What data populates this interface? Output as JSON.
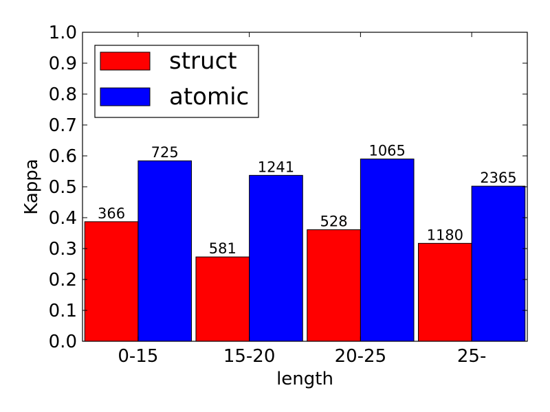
{
  "chart_data": {
    "type": "bar",
    "title": "",
    "xlabel": "length",
    "ylabel": "Kappa",
    "ylim": [
      0.0,
      1.0
    ],
    "yticks": [
      "0.0",
      "0.1",
      "0.2",
      "0.3",
      "0.4",
      "0.5",
      "0.6",
      "0.7",
      "0.8",
      "0.9",
      "1.0"
    ],
    "categories": [
      "0-15",
      "15-20",
      "20-25",
      "25-"
    ],
    "grid": false,
    "legend_position": "top-left",
    "series": [
      {
        "name": "struct",
        "color": "#ff0000",
        "values": [
          0.387,
          0.273,
          0.361,
          0.317
        ],
        "labels": [
          "366",
          "581",
          "528",
          "1180"
        ]
      },
      {
        "name": "atomic",
        "color": "#0000ff",
        "values": [
          0.584,
          0.537,
          0.59,
          0.502
        ],
        "labels": [
          "725",
          "1241",
          "1065",
          "2365"
        ]
      }
    ]
  }
}
